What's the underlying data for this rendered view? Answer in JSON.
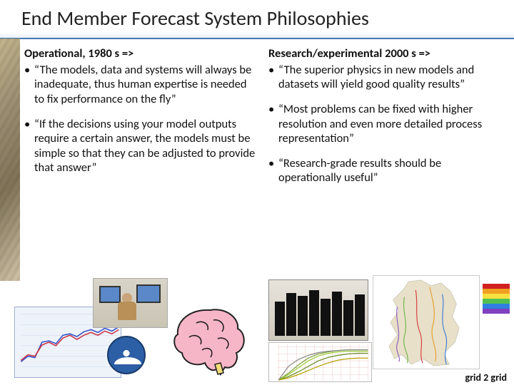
{
  "title": "End Member Forecast System Philosophies",
  "left": {
    "heading": "Operational, 1980 s =>",
    "b1": "“The models, data and systems will always be inadequate, thus human expertise is needed to fix performance on the fly”",
    "b2": "“If the decisions using your model outputs require a certain answer, the models must be simple so that they can be adjusted to provide that answer”"
  },
  "right": {
    "heading": "Research/experimental 2000 s =>",
    "b1": "“The superior physics in new models and datasets will yield good quality results”",
    "b2": "“Most problems can be fixed with higher resolution and even more detailed process representation”",
    "b3": "“Research-grade results should be operationally useful”"
  },
  "footer": "grid 2 grid",
  "chart": {
    "bg": "#eef3fa",
    "grid": "#c8d4e6",
    "line1_color": "#3355cc",
    "line2_color": "#cc3344",
    "line1": [
      68,
      60,
      62,
      40,
      38,
      42,
      30,
      28,
      32,
      25,
      22,
      26,
      20,
      24,
      18
    ],
    "line2": [
      66,
      58,
      60,
      44,
      40,
      45,
      34,
      30,
      36,
      30,
      26,
      30,
      24,
      28,
      22
    ]
  },
  "brain": {
    "fill": "#f7b6c8",
    "stroke": "#222222",
    "stem": "#f2df7a"
  },
  "servers": {
    "count": 8,
    "heights": [
      48,
      60,
      56,
      64,
      52,
      62,
      50,
      58
    ]
  },
  "lines_chart": {
    "bg": "#ffffff",
    "grid": "#e8b8b8",
    "colors": [
      "#7aa03a",
      "#9acd32",
      "#6b8e23",
      "#b8a000",
      "#888888"
    ],
    "series": [
      [
        50,
        40,
        28,
        18,
        12,
        9,
        7,
        6,
        6,
        6
      ],
      [
        50,
        42,
        32,
        22,
        15,
        11,
        9,
        8,
        8,
        8
      ],
      [
        50,
        45,
        38,
        30,
        22,
        17,
        14,
        12,
        11,
        11
      ],
      [
        50,
        47,
        42,
        36,
        30,
        25,
        21,
        19,
        18,
        18
      ],
      [
        50,
        30,
        20,
        14,
        10,
        8,
        7,
        6,
        6,
        6
      ]
    ]
  },
  "map": {
    "land": "#e8e0c8",
    "water": "#ffffff",
    "river_colors": [
      "#d84040",
      "#e8a030",
      "#70b850",
      "#4080d8",
      "#9060c0"
    ]
  },
  "legend_colors": [
    "#d02020",
    "#f0a020",
    "#f8e040",
    "#50c050",
    "#3080e0",
    "#8040c0"
  ]
}
